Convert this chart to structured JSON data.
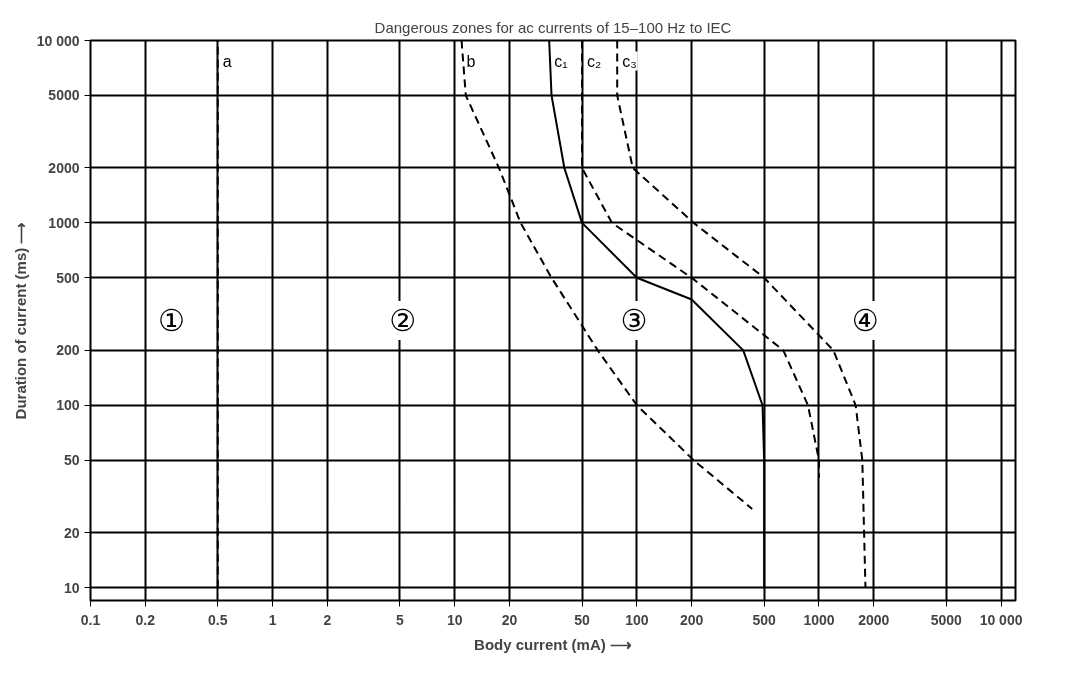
{
  "chart_data": {
    "type": "line",
    "title": "Dangerous zones for ac currents of 15–100 Hz to IEC",
    "xlabel": "Body current (mA) ⟶",
    "ylabel": "Duration of current (ms) ⟶",
    "log": "xy",
    "grid": true,
    "xlim": [
      0.1,
      12000
    ],
    "ylim": [
      8.5,
      10000
    ],
    "xticks": [
      0.1,
      0.2,
      0.5,
      1,
      2,
      5,
      10,
      20,
      50,
      100,
      200,
      500,
      1000,
      2000,
      5000,
      {
        "value": 10000,
        "label": "10 000"
      }
    ],
    "yticks": [
      10,
      20,
      50,
      100,
      200,
      500,
      1000,
      2000,
      5000,
      {
        "value": 10000,
        "label": "10 000"
      }
    ],
    "series": [
      {
        "name": "a",
        "color": "#000000",
        "line_style": "dashed",
        "x": [
          0.5,
          0.5
        ],
        "values": [
          10,
          10000
        ]
      },
      {
        "name": "b",
        "color": "#000000",
        "line_style": "dashed",
        "x": [
          10.9,
          11.5,
          17.5,
          23,
          34,
          61,
          100,
          205,
          430
        ],
        "values": [
          10000,
          5000,
          2000,
          1000,
          500,
          200,
          100,
          50,
          27
        ]
      },
      {
        "name": "c₁",
        "color": "#000000",
        "line_style": "solid",
        "x": [
          33,
          34,
          40,
          50,
          100,
          200,
          384,
          490,
          500,
          500
        ],
        "values": [
          10000,
          5000,
          2000,
          1000,
          500,
          380,
          200,
          100,
          50,
          10
        ]
      },
      {
        "name": "c₂",
        "color": "#000000",
        "line_style": "dashed",
        "x": [
          50,
          50,
          73,
          200,
          637,
          870,
          1000,
          1000
        ],
        "values": [
          10000,
          2000,
          1000,
          500,
          200,
          100,
          50,
          40
        ]
      },
      {
        "name": "c₃",
        "color": "#000000",
        "line_style": "dashed",
        "x": [
          78,
          78,
          95,
          205,
          500,
          1200,
          1590,
          1730,
          1800
        ],
        "values": [
          10000,
          5000,
          2000,
          1000,
          500,
          200,
          100,
          50,
          10
        ]
      }
    ],
    "annotations": [
      "①",
      "②",
      "③",
      "④"
    ]
  }
}
